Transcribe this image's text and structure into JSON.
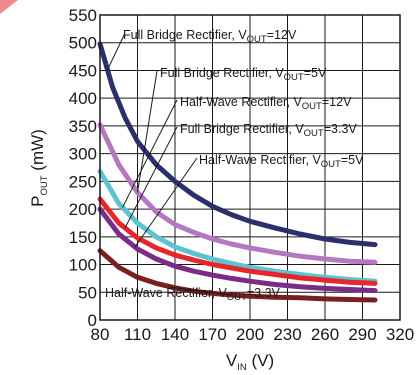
{
  "chart_data": {
    "type": "line",
    "xlabel": {
      "main": "V",
      "sub": "IN",
      "unit": " (V)"
    },
    "ylabel": {
      "main": "P",
      "sub": "OUT",
      "unit": " (mW)"
    },
    "xlim": [
      80,
      320
    ],
    "ylim": [
      0,
      550
    ],
    "xticks": [
      80,
      110,
      140,
      170,
      200,
      230,
      260,
      290,
      320
    ],
    "yticks": [
      0,
      50,
      100,
      150,
      200,
      250,
      300,
      350,
      400,
      450,
      500,
      550
    ],
    "grid": true,
    "series": [
      {
        "name": "Full Bridge Rectifier, VOUT=12V",
        "color": "#2b2f6b",
        "x": [
          80,
          90,
          100,
          110,
          125,
          140,
          155,
          170,
          185,
          200,
          220,
          240,
          260,
          280,
          300
        ],
        "y": [
          498,
          420,
          365,
          322,
          280,
          250,
          225,
          205,
          190,
          178,
          166,
          155,
          146,
          140,
          136
        ]
      },
      {
        "name": "Full Bridge Rectifier, VOUT=5V",
        "color": "#b577c2",
        "x": [
          80,
          95,
          110,
          125,
          140,
          155,
          170,
          185,
          200,
          220,
          240,
          260,
          280,
          300
        ],
        "y": [
          352,
          280,
          230,
          195,
          172,
          158,
          146,
          137,
          130,
          122,
          115,
          110,
          106,
          104
        ]
      },
      {
        "name": "Half-Wave Rectifier, VOUT=12V",
        "color": "#5bc4d0",
        "x": [
          80,
          95,
          110,
          125,
          140,
          155,
          170,
          185,
          200,
          220,
          240,
          260,
          280,
          300
        ],
        "y": [
          268,
          210,
          175,
          150,
          132,
          120,
          110,
          102,
          95,
          88,
          82,
          77,
          73,
          70
        ]
      },
      {
        "name": "Full Bridge Rectifier, VOUT=3.3V",
        "color": "#e8252b",
        "x": [
          80,
          95,
          110,
          125,
          140,
          155,
          170,
          185,
          200,
          220,
          240,
          260,
          280,
          300
        ],
        "y": [
          218,
          175,
          148,
          130,
          117,
          108,
          100,
          94,
          88,
          82,
          76,
          72,
          68,
          66
        ]
      },
      {
        "name": "Half-Wave Rectifier, VOUT=5V",
        "color": "#7a2c86",
        "x": [
          80,
          95,
          110,
          125,
          140,
          155,
          170,
          185,
          200,
          220,
          240,
          260,
          280,
          300
        ],
        "y": [
          200,
          155,
          128,
          110,
          97,
          88,
          81,
          75,
          70,
          64,
          60,
          57,
          55,
          53
        ]
      },
      {
        "name": "Half-Wave Rectifier, VOUT=3.3V",
        "color": "#7b1e1e",
        "x": [
          80,
          95,
          110,
          125,
          140,
          155,
          170,
          185,
          200,
          220,
          240,
          260,
          280,
          300
        ],
        "y": [
          125,
          95,
          77,
          66,
          58,
          52,
          48,
          45,
          43,
          41,
          40,
          38,
          37,
          36
        ]
      }
    ],
    "annotations": [
      {
        "text": "Full Bridge Rectifier, V",
        "sub": "OUT",
        "tail": "=12V",
        "series": 0
      },
      {
        "text": "Full Bridge Rectifier, V",
        "sub": "OUT",
        "tail": "=5V",
        "series": 1
      },
      {
        "text": "Half-Wave Rectifier, V",
        "sub": "OUT",
        "tail": "=12V",
        "series": 2
      },
      {
        "text": "Full Bridge Rectifier, V",
        "sub": "OUT",
        "tail": "=3.3V",
        "series": 3
      },
      {
        "text": "Half-Wave Rectifier, V",
        "sub": "OUT",
        "tail": "=5V",
        "series": 4
      },
      {
        "text": "Half-Wave Rectifier, V",
        "sub": "OUT",
        "tail": "=3.3V",
        "series": 5
      }
    ]
  }
}
